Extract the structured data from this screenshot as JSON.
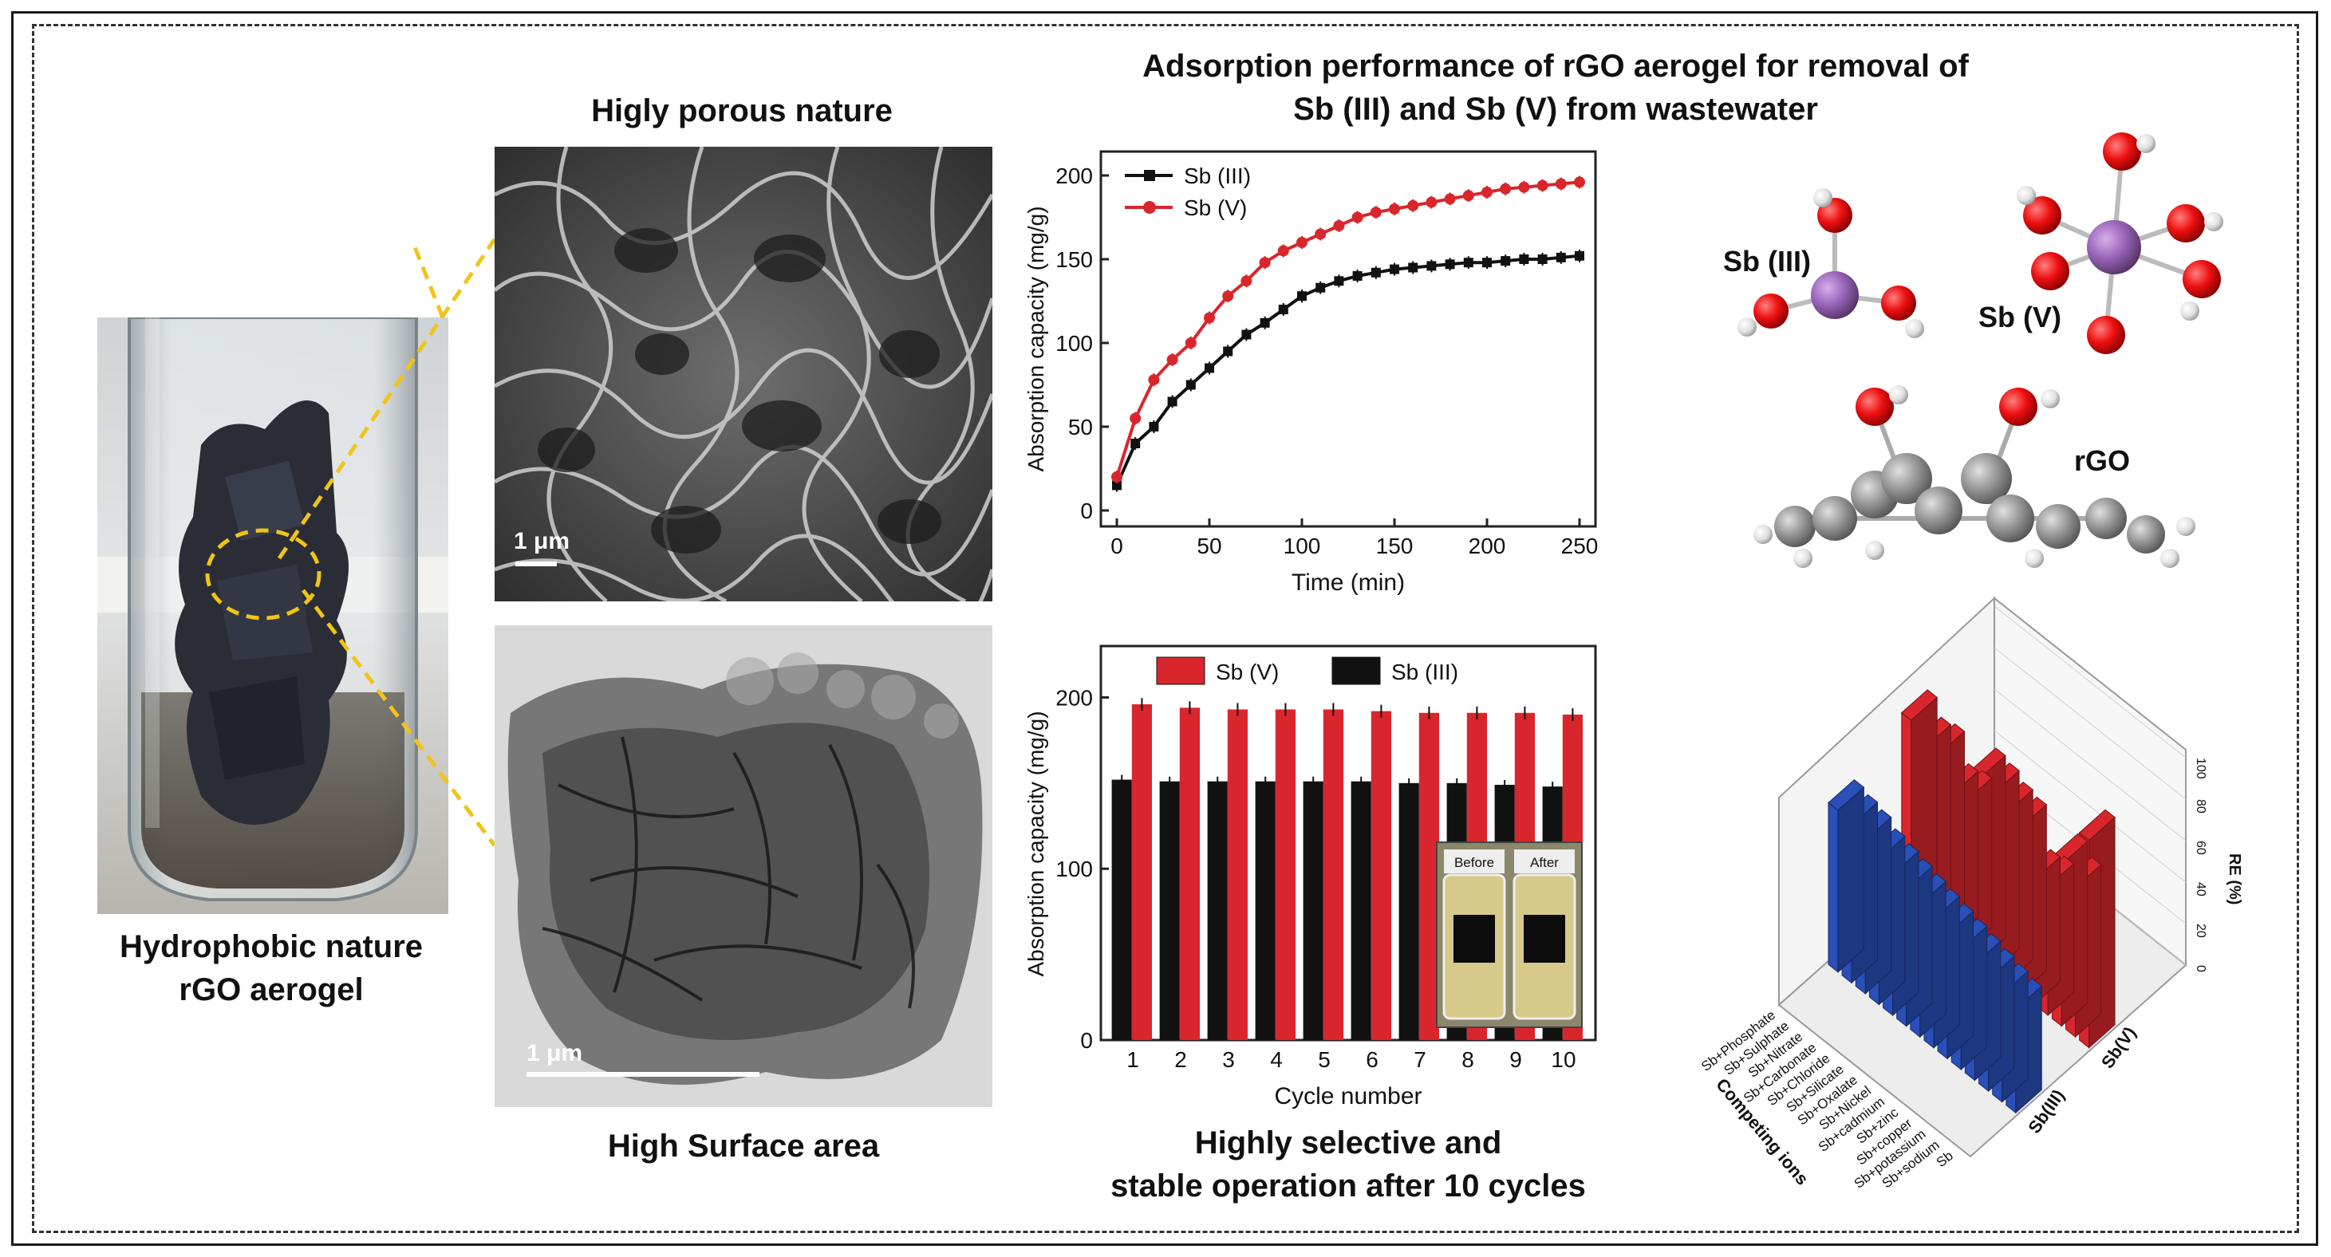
{
  "captions": {
    "left": "Hydrophobic nature\nrGO aerogel",
    "sem_title": "Higly porous nature",
    "tem_title": "High Surface area",
    "top_title": "Adsorption performance of rGO aerogel for removal of\nSb (III) and Sb (V) from wastewater",
    "bottom_title": "Highly selective and\nstable operation after 10 cycles"
  },
  "sem_scale": "1 μm",
  "tem_scale": "1  μm",
  "molecule_labels": {
    "sb3": "Sb (III)",
    "sb5": "Sb (V)",
    "rgo": "rGO"
  },
  "vial_labels": {
    "before": "Before",
    "after": "After"
  },
  "colors": {
    "red": "#d9262c",
    "black": "#111111",
    "blue": "#2a4fb8"
  },
  "chart_data": [
    {
      "type": "line",
      "xlabel": "Time (min)",
      "ylabel": "Absorption capacity (mg/g)",
      "xlim": [
        0,
        250
      ],
      "ylim": [
        0,
        200
      ],
      "xticks": [
        0,
        50,
        100,
        150,
        200,
        250
      ],
      "yticks": [
        0,
        50,
        100,
        150,
        200
      ],
      "legend": "top-left",
      "series": [
        {
          "name": "Sb (III)",
          "color": "#111111",
          "x": [
            0,
            10,
            20,
            30,
            40,
            50,
            60,
            70,
            80,
            90,
            100,
            110,
            120,
            130,
            140,
            150,
            160,
            170,
            180,
            190,
            200,
            210,
            220,
            230,
            240,
            250
          ],
          "y": [
            15,
            40,
            50,
            65,
            75,
            85,
            95,
            105,
            112,
            120,
            128,
            133,
            137,
            140,
            142,
            144,
            145,
            146,
            147,
            148,
            148,
            149,
            150,
            150,
            151,
            152
          ]
        },
        {
          "name": "Sb (V)",
          "color": "#d9262c",
          "x": [
            0,
            10,
            20,
            30,
            40,
            50,
            60,
            70,
            80,
            90,
            100,
            110,
            120,
            130,
            140,
            150,
            160,
            170,
            180,
            190,
            200,
            210,
            220,
            230,
            240,
            250
          ],
          "y": [
            20,
            55,
            78,
            90,
            100,
            115,
            128,
            137,
            148,
            155,
            160,
            165,
            170,
            175,
            178,
            180,
            182,
            184,
            186,
            188,
            190,
            192,
            193,
            194,
            195,
            196
          ]
        }
      ]
    },
    {
      "type": "bar",
      "xlabel": "Cycle number",
      "ylabel": "Absorption capacity (mg/g)",
      "ylim": [
        0,
        230
      ],
      "yticks": [
        0,
        100,
        200
      ],
      "legend": "top",
      "categories": [
        "1",
        "2",
        "3",
        "4",
        "5",
        "6",
        "7",
        "8",
        "9",
        "10"
      ],
      "series": [
        {
          "name": "Sb (V)",
          "color": "#d9262c",
          "values": [
            196,
            194,
            193,
            193,
            193,
            192,
            191,
            191,
            191,
            190
          ]
        },
        {
          "name": "Sb (III)",
          "color": "#111111",
          "values": [
            152,
            151,
            151,
            151,
            151,
            151,
            150,
            150,
            149,
            148
          ]
        }
      ]
    },
    {
      "type": "bar",
      "xlabel": "Competing ions",
      "zlabel": "RE (%)",
      "zticks": [
        0,
        20,
        40,
        60,
        80,
        100
      ],
      "categories": [
        "Sb+Phosphate",
        "Sb+Sulphate",
        "Sb+Nitrate",
        "Sb+Carbonate",
        "Sb+Chloride",
        "Sb+Silicate",
        "Sb+Oxalate",
        "Sb+Nickel",
        "Sb+cadmium",
        "Sb+zinc",
        "Sb+copper",
        "Sb+potassium",
        "Sb+sodium",
        "Sb"
      ],
      "series": [
        {
          "name": "Sb(V)",
          "color": "#d9262c",
          "values": [
            90,
            82,
            84,
            70,
            72,
            88,
            86,
            82,
            80,
            60,
            62,
            78,
            72,
            100
          ]
        },
        {
          "name": "Sb(III)",
          "color": "#2a4fb8",
          "values": [
            78,
            76,
            74,
            70,
            68,
            66,
            64,
            62,
            60,
            58,
            56,
            54,
            52,
            50
          ]
        }
      ]
    }
  ]
}
